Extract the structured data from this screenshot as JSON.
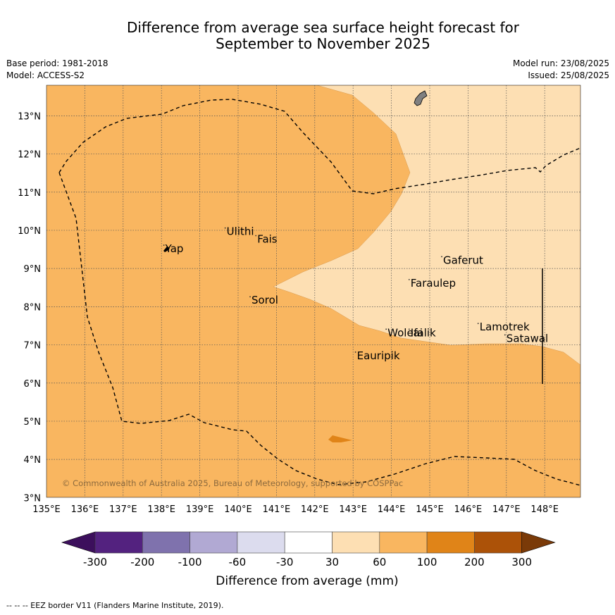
{
  "title": {
    "line1": "Difference from average sea surface height forecast for",
    "line2": "September to November 2025"
  },
  "meta": {
    "base_period": "Base period: 1981-2018",
    "model": "Model: ACCESS-S2",
    "model_run": "Model run: 23/08/2025",
    "issued": "Issued: 25/08/2025"
  },
  "map": {
    "lat_labels": [
      "13°N",
      "12°N",
      "11°N",
      "10°N",
      "9°N",
      "8°N",
      "7°N",
      "6°N",
      "5°N",
      "4°N",
      "3°N"
    ],
    "lon_labels": [
      "135°E",
      "136°E",
      "137°E",
      "138°E",
      "139°E",
      "140°E",
      "141°E",
      "142°E",
      "143°E",
      "144°E",
      "145°E",
      "146°E",
      "147°E",
      "148°E"
    ],
    "places": [
      {
        "name": "Yap",
        "lon": 138.1,
        "lat": 9.5
      },
      {
        "name": "Ulithi",
        "lon": 139.7,
        "lat": 9.95
      },
      {
        "name": "Fais",
        "lon": 140.5,
        "lat": 9.75
      },
      {
        "name": "Sorol",
        "lon": 140.35,
        "lat": 8.15
      },
      {
        "name": "Gaferut",
        "lon": 145.35,
        "lat": 9.2
      },
      {
        "name": "Faraulep",
        "lon": 144.5,
        "lat": 8.6
      },
      {
        "name": "Woleai",
        "lon": 143.9,
        "lat": 7.3
      },
      {
        "name": "Ifalik",
        "lon": 144.5,
        "lat": 7.3
      },
      {
        "name": "Lamotrek",
        "lon": 146.3,
        "lat": 7.45
      },
      {
        "name": "Satawal",
        "lon": 147.0,
        "lat": 7.15
      },
      {
        "name": "Eauripik",
        "lon": 143.1,
        "lat": 6.7
      }
    ],
    "copyright": "© Commonwealth of Australia 2025, Bureau of Meteorology, supported by COSPPac"
  },
  "colorbar": {
    "colors": [
      "#3c0f5c",
      "#53227f",
      "#7f72ad",
      "#b1a9d3",
      "#dcdcee",
      "#ffffff",
      "#fddfb3",
      "#f9b660",
      "#e08418",
      "#ac5208",
      "#7a3a08"
    ],
    "tick_labels": [
      "-300",
      "-200",
      "-100",
      "-60",
      "-30",
      "30",
      "60",
      "100",
      "200",
      "300"
    ],
    "label": "Difference from average (mm)"
  },
  "footer": "--  --  -- EEZ border V11 (Flanders Marine Institute, 2019)."
}
